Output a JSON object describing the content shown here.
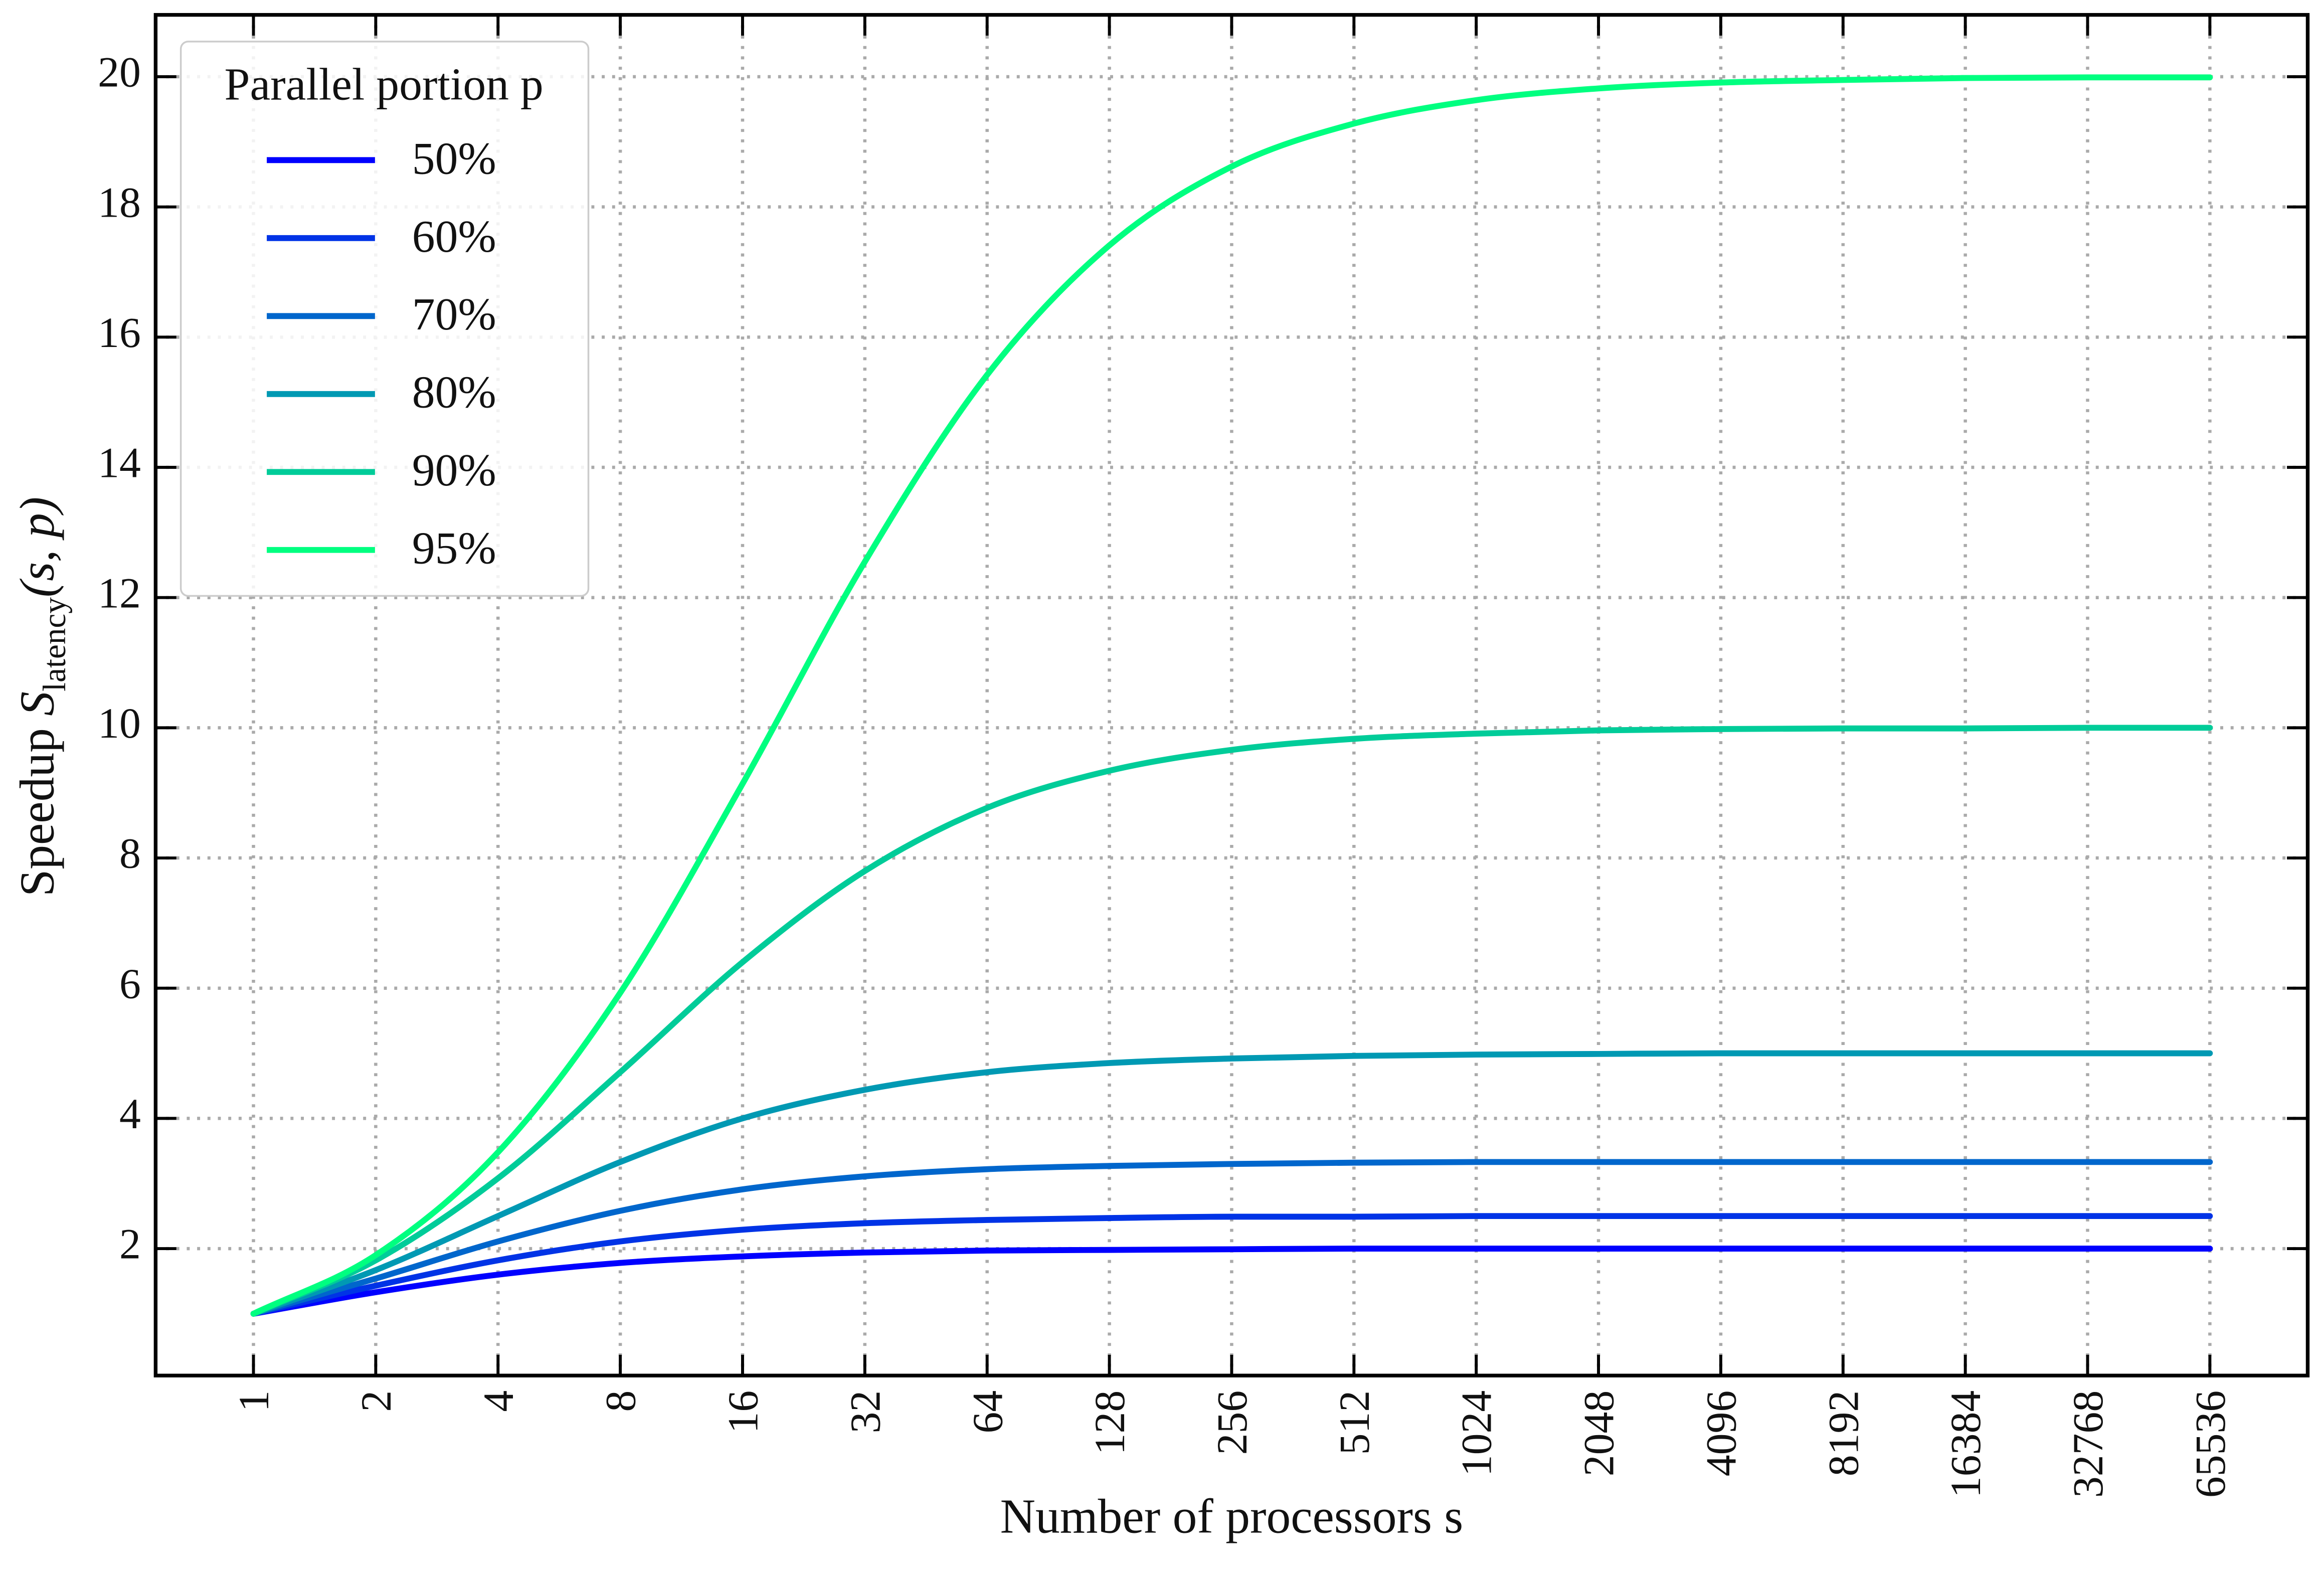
{
  "chart_data": {
    "type": "line",
    "xlabel": "Number of processors s",
    "ylabel": {
      "text": "Speedup ",
      "symbol": "S",
      "subscript": "latency",
      "args": "(s, p)"
    },
    "legend_title": "Parallel portion p",
    "legend": "upper left",
    "grid": true,
    "xscale": "log2",
    "x": [
      1,
      2,
      4,
      8,
      16,
      32,
      64,
      128,
      256,
      512,
      1024,
      2048,
      4096,
      8192,
      16384,
      32768,
      65536
    ],
    "xlim": [
      0.5743,
      114105
    ],
    "xticks": [
      1,
      2,
      4,
      8,
      16,
      32,
      64,
      128,
      256,
      512,
      1024,
      2048,
      4096,
      8192,
      16384,
      32768,
      65536
    ],
    "ylim": [
      0.05,
      20.95
    ],
    "yticks": [
      2,
      4,
      6,
      8,
      10,
      12,
      14,
      16,
      18,
      20
    ],
    "series": [
      {
        "name": "50%",
        "color": "#0000ff",
        "values": [
          1,
          1.33,
          1.6,
          1.78,
          1.88,
          1.94,
          1.97,
          1.98,
          1.99,
          2,
          2,
          2,
          2,
          2,
          2,
          2,
          2
        ]
      },
      {
        "name": "60%",
        "color": "#0033e6",
        "values": [
          1,
          1.43,
          1.82,
          2.11,
          2.29,
          2.39,
          2.44,
          2.47,
          2.49,
          2.49,
          2.5,
          2.5,
          2.5,
          2.5,
          2.5,
          2.5,
          2.5
        ]
      },
      {
        "name": "70%",
        "color": "#0066cc",
        "values": [
          1,
          1.54,
          2.11,
          2.58,
          2.91,
          3.11,
          3.22,
          3.27,
          3.3,
          3.32,
          3.33,
          3.33,
          3.33,
          3.33,
          3.33,
          3.33,
          3.33
        ]
      },
      {
        "name": "80%",
        "color": "#0099b3",
        "values": [
          1,
          1.67,
          2.5,
          3.33,
          4,
          4.44,
          4.71,
          4.85,
          4.92,
          4.96,
          4.98,
          4.99,
          5,
          5,
          5,
          5,
          5
        ]
      },
      {
        "name": "90%",
        "color": "#00cc99",
        "values": [
          1,
          1.82,
          3.08,
          4.71,
          6.4,
          7.8,
          8.77,
          9.34,
          9.66,
          9.83,
          9.91,
          9.96,
          9.98,
          9.99,
          9.99,
          10,
          10
        ]
      },
      {
        "name": "95%",
        "color": "#00ff80",
        "values": [
          1,
          1.9,
          3.48,
          5.93,
          9.14,
          12.55,
          15.42,
          17.41,
          18.62,
          19.28,
          19.64,
          19.82,
          19.91,
          19.95,
          19.98,
          19.99,
          19.99
        ]
      }
    ]
  }
}
